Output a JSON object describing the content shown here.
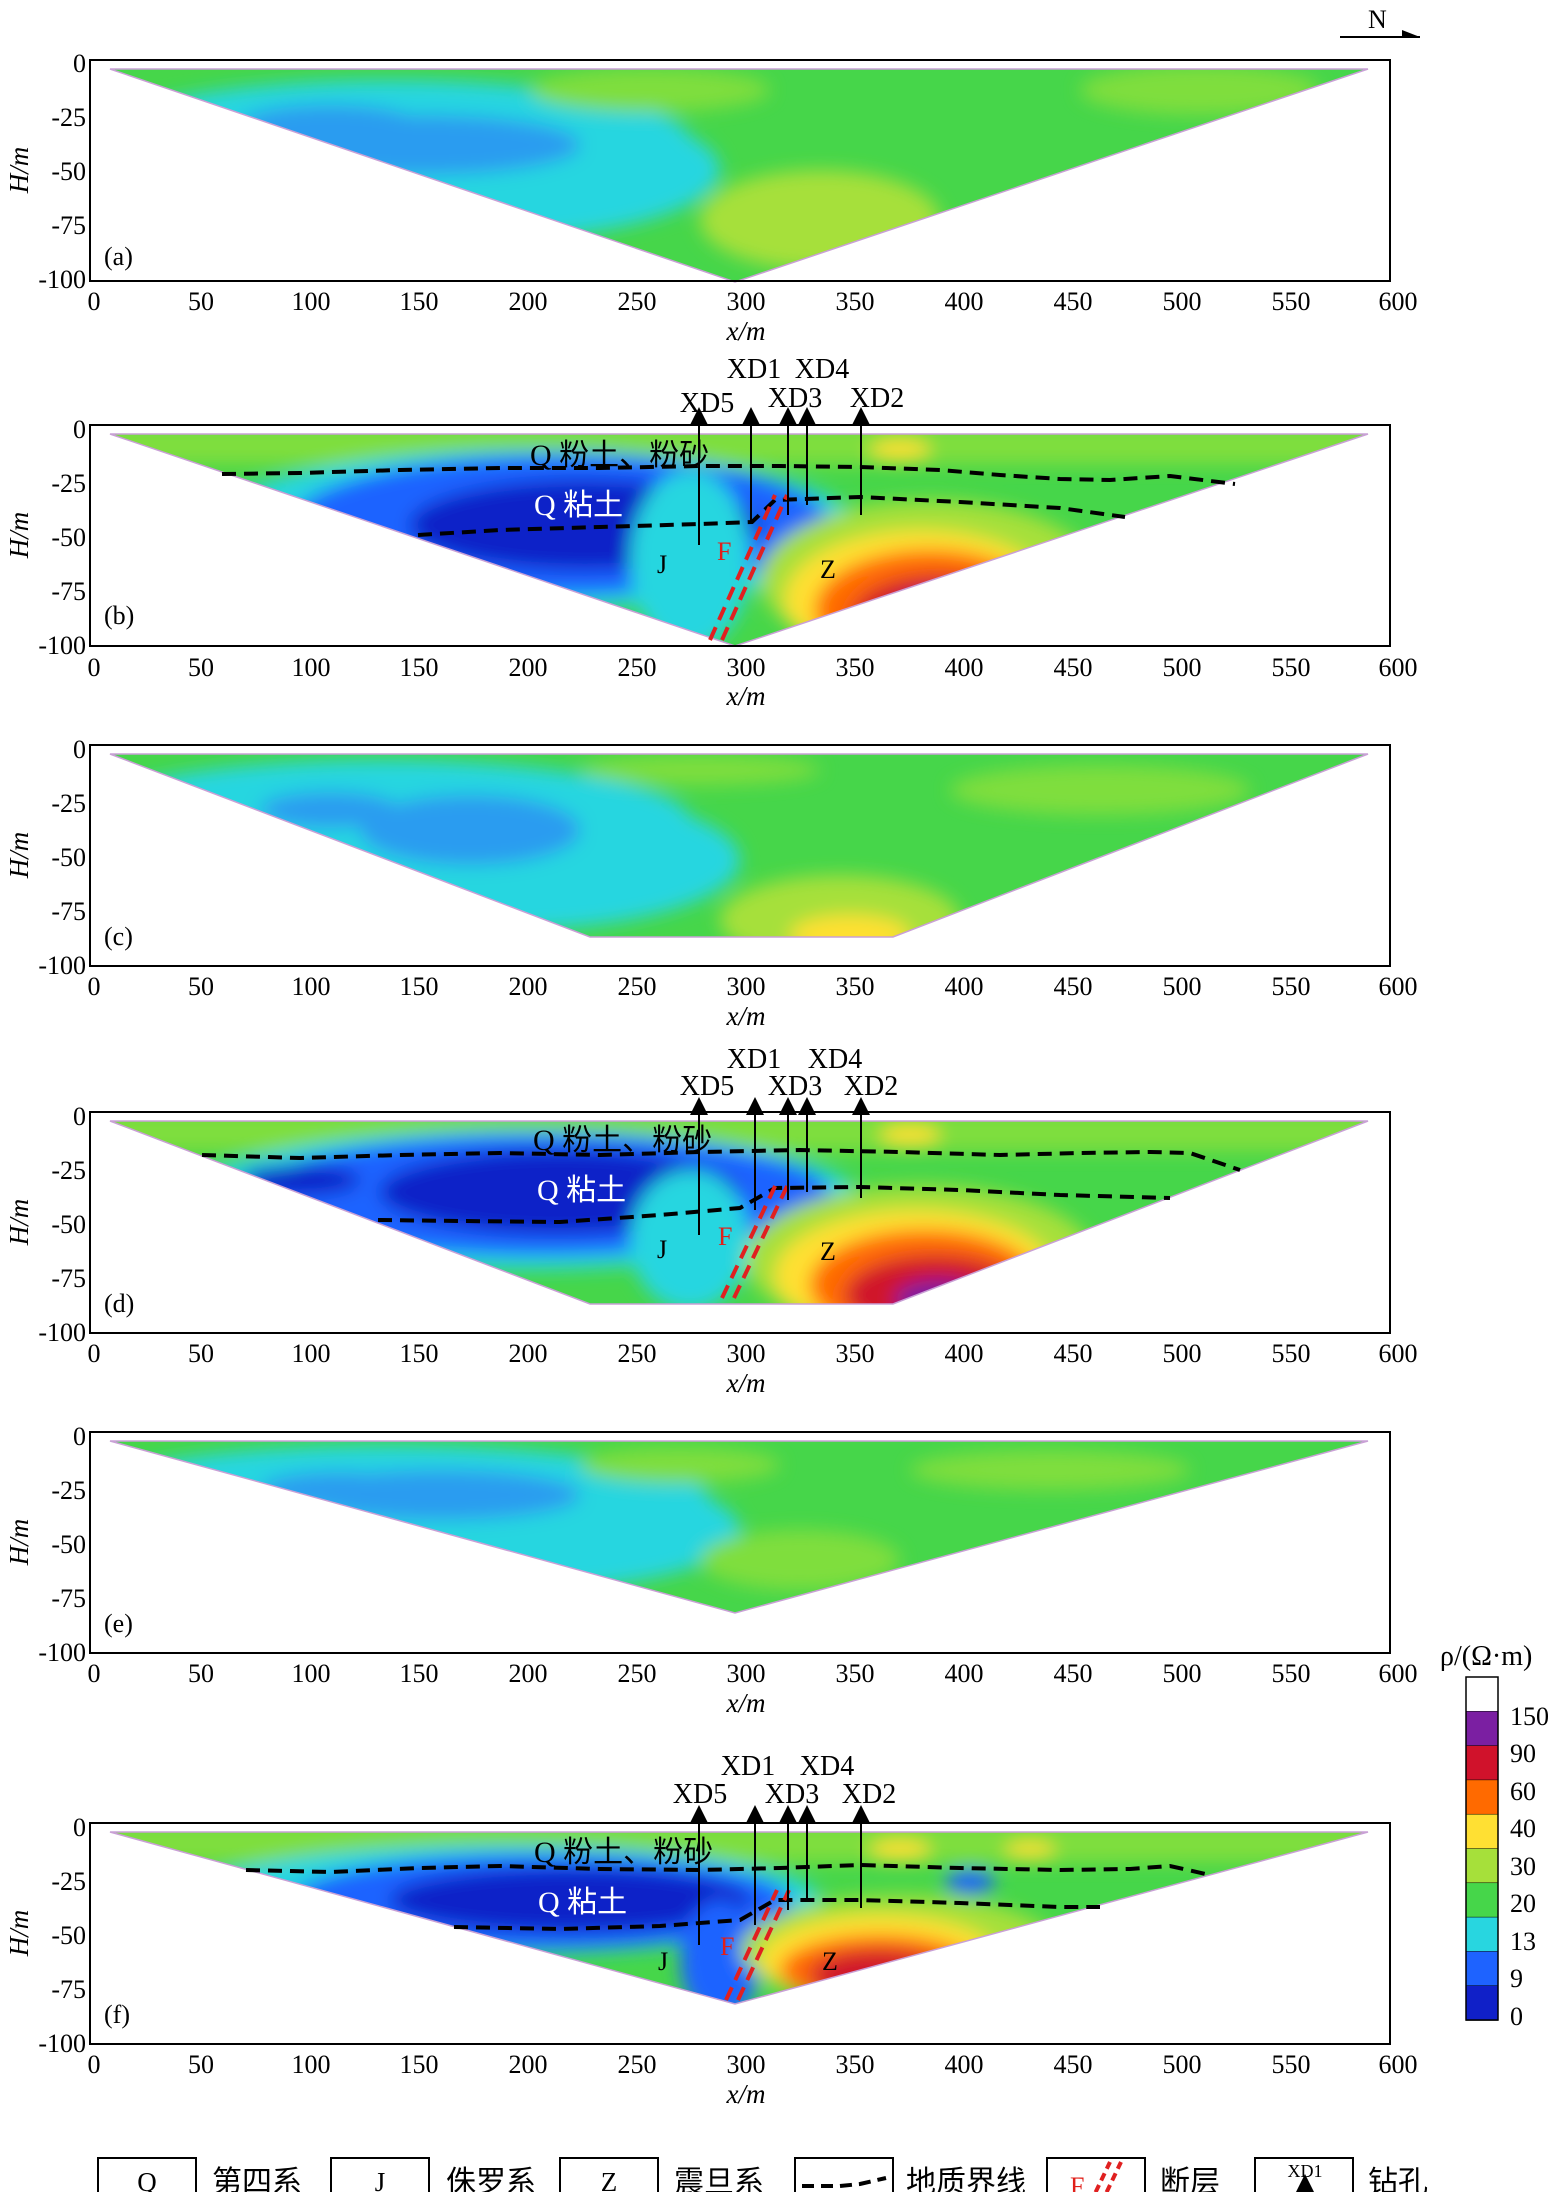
{
  "north_arrow": {
    "label": "N"
  },
  "colorbar": {
    "title": "ρ/(Ω·m)",
    "labels": [
      "150",
      "90",
      "60",
      "40",
      "30",
      "20",
      "13",
      "9",
      "0"
    ],
    "colors": [
      "#ffffff",
      "#7b1fa2",
      "#d0122b",
      "#ff6a00",
      "#ffe033",
      "#a6e03a",
      "#46d64a",
      "#28d6e0",
      "#1e63ff",
      "#1020c8"
    ]
  },
  "legend": {
    "q_box": "Q",
    "q_text": "第四系",
    "j_box": "J",
    "j_text": "侏罗系",
    "z_box": "Z",
    "z_text": "震旦系",
    "boundary_text": "地质界线",
    "fault_box": "F",
    "fault_text": "断层",
    "borehole_box": "XD1",
    "borehole_text": "钻孔"
  },
  "chart_data": [
    {
      "type": "heatmap",
      "panel": "(a)",
      "xlabel": "x/m",
      "ylabel": "H/m",
      "xlim": [
        0,
        600
      ],
      "ylim": [
        -100,
        0
      ],
      "xticks": [
        "0",
        "50",
        "100",
        "150",
        "200",
        "250",
        "300",
        "350",
        "400",
        "450",
        "500",
        "550",
        "600"
      ],
      "yticks": [
        "0",
        "-25",
        "-50",
        "-75",
        "-100"
      ],
      "section_outline": [
        [
          10,
          -3
        ],
        [
          580,
          -3
        ],
        [
          295,
          -100
        ]
      ],
      "dominant_zones": [
        {
          "range_ohm_m": "9-13",
          "x_range": [
            130,
            280
          ],
          "depth_range": [
            -25,
            -45
          ]
        },
        {
          "range_ohm_m": "13-20",
          "x_range": [
            40,
            290
          ],
          "depth_range": [
            -10,
            -80
          ]
        },
        {
          "range_ohm_m": "20-40",
          "x_range": [
            280,
            580
          ],
          "depth_range": [
            -3,
            -100
          ]
        }
      ]
    },
    {
      "type": "heatmap",
      "panel": "(b)",
      "xlabel": "x/m",
      "ylabel": "H/m",
      "xlim": [
        0,
        600
      ],
      "ylim": [
        -100,
        0
      ],
      "xticks": [
        "0",
        "50",
        "100",
        "150",
        "200",
        "250",
        "300",
        "350",
        "400",
        "450",
        "500",
        "550",
        "600"
      ],
      "yticks": [
        "0",
        "-25",
        "-50",
        "-75",
        "-100"
      ],
      "section_outline": [
        [
          10,
          -3
        ],
        [
          580,
          -3
        ],
        [
          295,
          -100
        ]
      ],
      "boreholes": [
        {
          "name": "XD5",
          "x": 278
        },
        {
          "name": "XD1",
          "x": 302
        },
        {
          "name": "XD3",
          "x": 320
        },
        {
          "name": "XD4",
          "x": 329
        },
        {
          "name": "XD2",
          "x": 353
        }
      ],
      "layer_labels": [
        "Q 粉土、粉砂",
        "Q 粘土",
        "J",
        "Z",
        "F"
      ],
      "fault": [
        [
          282,
          -96
        ],
        [
          315,
          -30
        ]
      ],
      "boundaries": [
        [
          [
            60,
            -19
          ],
          [
            150,
            -19
          ],
          [
            250,
            -17
          ],
          [
            330,
            -16
          ],
          [
            400,
            -18
          ],
          [
            460,
            -22
          ],
          [
            520,
            -25
          ]
        ],
        [
          [
            150,
            -48
          ],
          [
            250,
            -42
          ],
          [
            300,
            -42
          ],
          [
            320,
            -32
          ],
          [
            400,
            -35
          ],
          [
            475,
            -40
          ]
        ]
      ],
      "dominant_zones": [
        {
          "range_ohm_m": "0-13",
          "x_range": [
            100,
            310
          ],
          "depth_range": [
            -20,
            -75
          ]
        },
        {
          "range_ohm_m": "20-40",
          "x_range": [
            10,
            580
          ],
          "depth_range": [
            -3,
            -20
          ]
        },
        {
          "range_ohm_m": "40-150",
          "x_range": [
            320,
            430
          ],
          "depth_range": [
            -45,
            -100
          ]
        }
      ]
    },
    {
      "type": "heatmap",
      "panel": "(c)",
      "xlabel": "x/m",
      "ylabel": "H/m",
      "xlim": [
        0,
        600
      ],
      "ylim": [
        -100,
        0
      ],
      "xticks": [
        "0",
        "50",
        "100",
        "150",
        "200",
        "250",
        "300",
        "350",
        "400",
        "450",
        "500",
        "550",
        "600"
      ],
      "yticks": [
        "0",
        "-25",
        "-50",
        "-75",
        "-100"
      ],
      "section_outline": [
        [
          10,
          -3
        ],
        [
          580,
          -3
        ],
        [
          365,
          -86
        ],
        [
          228,
          -86
        ]
      ],
      "dominant_zones": [
        {
          "range_ohm_m": "9-13",
          "x_range": [
            150,
            260
          ],
          "depth_range": [
            -25,
            -50
          ]
        },
        {
          "range_ohm_m": "13-20",
          "x_range": [
            40,
            300
          ],
          "depth_range": [
            -10,
            -86
          ]
        },
        {
          "range_ohm_m": "20-40",
          "x_range": [
            290,
            580
          ],
          "depth_range": [
            -3,
            -86
          ]
        }
      ]
    },
    {
      "type": "heatmap",
      "panel": "(d)",
      "xlabel": "x/m",
      "ylabel": "H/m",
      "xlim": [
        0,
        600
      ],
      "ylim": [
        -100,
        0
      ],
      "xticks": [
        "0",
        "50",
        "100",
        "150",
        "200",
        "250",
        "300",
        "350",
        "400",
        "450",
        "500",
        "550",
        "600"
      ],
      "yticks": [
        "0",
        "-25",
        "-50",
        "-75",
        "-100"
      ],
      "section_outline": [
        [
          10,
          -3
        ],
        [
          580,
          -3
        ],
        [
          365,
          -86
        ],
        [
          228,
          -86
        ]
      ],
      "boreholes": [
        {
          "name": "XD5",
          "x": 278
        },
        {
          "name": "XD1",
          "x": 302
        },
        {
          "name": "XD3",
          "x": 318
        },
        {
          "name": "XD4",
          "x": 329
        },
        {
          "name": "XD2",
          "x": 353
        }
      ],
      "layer_labels": [
        "Q 粉土、粉砂",
        "Q 粘土",
        "J",
        "Z",
        "F"
      ],
      "fault": [
        [
          290,
          -82
        ],
        [
          318,
          -30
        ]
      ],
      "boundaries": [
        [
          [
            50,
            -17
          ],
          [
            150,
            -19
          ],
          [
            250,
            -17
          ],
          [
            330,
            -16
          ],
          [
            420,
            -18
          ],
          [
            480,
            -17
          ],
          [
            525,
            -24
          ]
        ],
        [
          [
            130,
            -46
          ],
          [
            250,
            -44
          ],
          [
            300,
            -40
          ],
          [
            320,
            -31
          ],
          [
            420,
            -34
          ],
          [
            495,
            -37
          ]
        ]
      ],
      "dominant_zones": [
        {
          "range_ohm_m": "0-13",
          "x_range": [
            90,
            310
          ],
          "depth_range": [
            -20,
            -75
          ]
        },
        {
          "range_ohm_m": "20-40",
          "x_range": [
            10,
            580
          ],
          "depth_range": [
            -3,
            -20
          ]
        },
        {
          "range_ohm_m": "40-150",
          "x_range": [
            320,
            420
          ],
          "depth_range": [
            -45,
            -86
          ]
        }
      ]
    },
    {
      "type": "heatmap",
      "panel": "(e)",
      "xlabel": "x/m",
      "ylabel": "H/m",
      "xlim": [
        0,
        600
      ],
      "ylim": [
        -100,
        0
      ],
      "xticks": [
        "0",
        "50",
        "100",
        "150",
        "200",
        "250",
        "300",
        "350",
        "400",
        "450",
        "500",
        "550",
        "600"
      ],
      "yticks": [
        "0",
        "-25",
        "-50",
        "-75",
        "-100"
      ],
      "section_outline": [
        [
          10,
          -3
        ],
        [
          580,
          -3
        ],
        [
          295,
          -82
        ]
      ],
      "dominant_zones": [
        {
          "range_ohm_m": "9-13",
          "x_range": [
            130,
            260
          ],
          "depth_range": [
            -20,
            -45
          ]
        },
        {
          "range_ohm_m": "13-20",
          "x_range": [
            40,
            300
          ],
          "depth_range": [
            -10,
            -75
          ]
        },
        {
          "range_ohm_m": "20-40",
          "x_range": [
            280,
            580
          ],
          "depth_range": [
            -3,
            -82
          ]
        }
      ]
    },
    {
      "type": "heatmap",
      "panel": "(f)",
      "xlabel": "x/m",
      "ylabel": "H/m",
      "xlim": [
        0,
        600
      ],
      "ylim": [
        -100,
        0
      ],
      "xticks": [
        "0",
        "50",
        "100",
        "150",
        "200",
        "250",
        "300",
        "350",
        "400",
        "450",
        "500",
        "550",
        "600"
      ],
      "yticks": [
        "0",
        "-25",
        "-50",
        "-75",
        "-100"
      ],
      "section_outline": [
        [
          10,
          -3
        ],
        [
          580,
          -3
        ],
        [
          295,
          -82
        ]
      ],
      "boreholes": [
        {
          "name": "XD5",
          "x": 278
        },
        {
          "name": "XD1",
          "x": 302
        },
        {
          "name": "XD3",
          "x": 318
        },
        {
          "name": "XD4",
          "x": 329
        },
        {
          "name": "XD2",
          "x": 353
        }
      ],
      "layer_labels": [
        "Q 粉土、粉砂",
        "Q 粘土",
        "J",
        "Z",
        "F"
      ],
      "fault": [
        [
          292,
          -80
        ],
        [
          315,
          -28
        ]
      ],
      "boundaries": [
        [
          [
            70,
            -19
          ],
          [
            200,
            -18
          ],
          [
            300,
            -18
          ],
          [
            380,
            -17
          ],
          [
            460,
            -18
          ],
          [
            500,
            -20
          ],
          [
            515,
            -22
          ]
        ],
        [
          [
            165,
            -45
          ],
          [
            270,
            -44
          ],
          [
            300,
            -40
          ],
          [
            320,
            -31
          ],
          [
            400,
            -35
          ],
          [
            450,
            -36
          ]
        ]
      ],
      "dominant_zones": [
        {
          "range_ohm_m": "0-13",
          "x_range": [
            150,
            300
          ],
          "depth_range": [
            -20,
            -60
          ]
        },
        {
          "range_ohm_m": "20-40",
          "x_range": [
            10,
            580
          ],
          "depth_range": [
            -3,
            -20
          ]
        },
        {
          "range_ohm_m": "40-90",
          "x_range": [
            320,
            420
          ],
          "depth_range": [
            -45,
            -80
          ]
        }
      ]
    }
  ]
}
